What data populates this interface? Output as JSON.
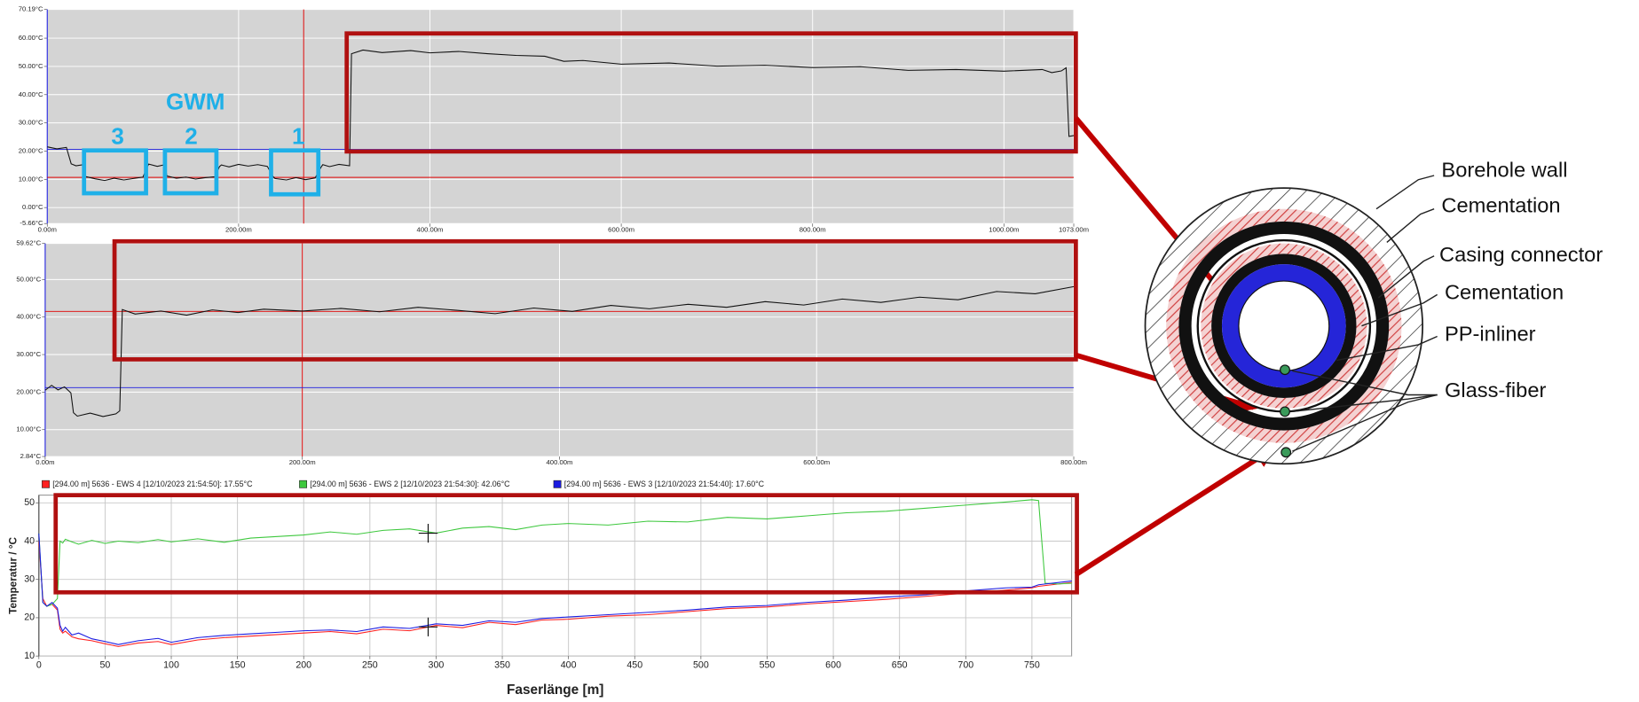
{
  "chart_data": [
    {
      "type": "line",
      "plot_background": "#d4d4d4",
      "grid": true,
      "grid_color": "#ffffff",
      "xlim": [
        0,
        1073
      ],
      "ylim": [
        -5.66,
        70.19
      ],
      "xticks": [
        {
          "value": 0,
          "label": "0.00m"
        },
        {
          "value": 200,
          "label": "200.00m"
        },
        {
          "value": 400,
          "label": "400.00m"
        },
        {
          "value": 600,
          "label": "600.00m"
        },
        {
          "value": 800,
          "label": "800.00m"
        },
        {
          "value": 1000,
          "label": "1000.00m"
        },
        {
          "value": 1073,
          "label": "1073.00m"
        }
      ],
      "yticks": [
        {
          "value": -5.66,
          "label": "-5.66°C"
        },
        {
          "value": 0,
          "label": "0.00°C"
        },
        {
          "value": 10,
          "label": "10.00°C"
        },
        {
          "value": 20,
          "label": "20.00°C"
        },
        {
          "value": 30,
          "label": "30.00°C"
        },
        {
          "value": 40,
          "label": "40.00°C"
        },
        {
          "value": 50,
          "label": "50.00°C"
        },
        {
          "value": 60,
          "label": "60.00°C"
        },
        {
          "value": 70.19,
          "label": "70.19°C"
        }
      ],
      "ref_lines": [
        {
          "axis": "x",
          "value": 268,
          "color": "#e00000"
        },
        {
          "axis": "y",
          "value": 10.7,
          "color": "#e00000"
        },
        {
          "axis": "y",
          "value": 20.6,
          "color": "#2020e0"
        }
      ],
      "annotations": [
        "GWM",
        "3",
        "2",
        "1"
      ],
      "x": [
        0,
        10,
        20,
        25,
        30,
        38,
        40,
        50,
        60,
        70,
        80,
        90,
        100,
        104,
        106,
        115,
        123,
        125,
        135,
        145,
        155,
        165,
        175,
        180,
        182,
        190,
        200,
        210,
        220,
        230,
        236,
        238,
        250,
        260,
        270,
        280,
        286,
        288,
        295,
        305,
        316,
        318,
        330,
        350,
        380,
        400,
        430,
        460,
        490,
        520,
        540,
        560,
        600,
        650,
        700,
        750,
        800,
        850,
        900,
        950,
        1000,
        1040,
        1050,
        1060,
        1065,
        1068,
        1073
      ],
      "series": [
        {
          "color": "#111111",
          "values": [
            21.5,
            20.8,
            21.3,
            15.5,
            14.8,
            15.2,
            11,
            10.2,
            9.6,
            10.4,
            9.8,
            10.3,
            10.8,
            14,
            15.4,
            14.6,
            15.2,
            11.2,
            10.4,
            10.8,
            10.1,
            10.6,
            10.9,
            14.5,
            15.1,
            14.4,
            15.3,
            14.7,
            15.2,
            14.6,
            11,
            10.3,
            9.8,
            10.6,
            9.9,
            10.5,
            14.2,
            15.2,
            14.5,
            15.3,
            14.8,
            54.5,
            55.8,
            54.9,
            55.6,
            54.8,
            55.3,
            54.5,
            53.9,
            53.6,
            51.8,
            52.1,
            50.8,
            51.2,
            50.1,
            50.4,
            49.6,
            49.9,
            48.6,
            48.9,
            48.3,
            48.9,
            47.8,
            48.4,
            49.5,
            25.2,
            25.5
          ]
        }
      ]
    },
    {
      "type": "line",
      "plot_background": "#d4d4d4",
      "grid": true,
      "grid_color": "#ffffff",
      "xlim": [
        0,
        800
      ],
      "ylim": [
        2.84,
        59.62
      ],
      "xticks": [
        {
          "value": 0,
          "label": "0.00m"
        },
        {
          "value": 200,
          "label": "200.00m"
        },
        {
          "value": 400,
          "label": "400.00m"
        },
        {
          "value": 600,
          "label": "600.00m"
        },
        {
          "value": 800,
          "label": "800.00m"
        }
      ],
      "yticks": [
        {
          "value": 2.84,
          "label": "2.84°C"
        },
        {
          "value": 10,
          "label": "10.00°C"
        },
        {
          "value": 20,
          "label": "20.00°C"
        },
        {
          "value": 30,
          "label": "30.00°C"
        },
        {
          "value": 40,
          "label": "40.00°C"
        },
        {
          "value": 50,
          "label": "50.00°C"
        },
        {
          "value": 59.62,
          "label": "59.62°C"
        }
      ],
      "ref_lines": [
        {
          "axis": "x",
          "value": 200,
          "color": "#e00000"
        },
        {
          "axis": "y",
          "value": 41.5,
          "color": "#e00000"
        },
        {
          "axis": "y",
          "value": 21.2,
          "color": "#2020e0"
        }
      ],
      "x": [
        0,
        5,
        10,
        15,
        20,
        22,
        25,
        35,
        45,
        55,
        58,
        60,
        70,
        90,
        110,
        130,
        150,
        170,
        200,
        230,
        260,
        290,
        320,
        350,
        380,
        410,
        440,
        470,
        500,
        530,
        560,
        590,
        620,
        650,
        680,
        710,
        740,
        770,
        800
      ],
      "series": [
        {
          "color": "#111111",
          "values": [
            20.5,
            21.8,
            20.6,
            21.4,
            19.8,
            14.5,
            13.6,
            14.4,
            13.5,
            14.2,
            15,
            42,
            40.8,
            41.6,
            40.5,
            41.9,
            41.2,
            42.1,
            41.6,
            42.3,
            41.4,
            42.6,
            41.8,
            40.9,
            42.4,
            41.5,
            43.1,
            42.2,
            43.4,
            42.6,
            44.1,
            43.2,
            44.8,
            43.9,
            45.3,
            44.6,
            46.8,
            46.2,
            48.1
          ]
        }
      ]
    },
    {
      "type": "line",
      "plot_background": "#ffffff",
      "grid": true,
      "grid_color": "#c8c8c8",
      "legend": "top",
      "x_label": "Faserlänge [m]",
      "y_label": "Temperatur / °C",
      "xlim": [
        0,
        780
      ],
      "ylim": [
        10,
        52
      ],
      "xticks": [
        0,
        50,
        100,
        150,
        200,
        250,
        300,
        350,
        400,
        450,
        500,
        550,
        600,
        650,
        700,
        750
      ],
      "yticks": [
        10,
        20,
        30,
        40,
        50
      ],
      "markers": [
        {
          "x": 294,
          "y": 42.06
        },
        {
          "x": 294,
          "y": 17.6
        }
      ],
      "x": [
        0,
        3,
        6,
        10,
        14,
        16,
        18,
        20,
        25,
        30,
        40,
        50,
        60,
        75,
        90,
        100,
        120,
        140,
        160,
        180,
        200,
        220,
        240,
        260,
        280,
        300,
        320,
        340,
        360,
        380,
        400,
        430,
        460,
        490,
        520,
        550,
        580,
        610,
        640,
        670,
        700,
        730,
        750,
        755,
        760,
        770,
        780
      ],
      "series": [
        {
          "name": "[294.00 m] 5636 - EWS 4 [12/10/2023 21:54:50]: 17.55°C",
          "color": "#ff2020",
          "values": [
            40,
            25,
            23,
            23.5,
            22,
            17,
            16,
            16.5,
            15,
            14.5,
            14,
            13.2,
            12.5,
            13.4,
            13.8,
            13,
            14.2,
            14.8,
            15.2,
            15.6,
            16,
            16.4,
            15.8,
            17,
            16.6,
            18,
            17.4,
            18.8,
            18.2,
            19.4,
            19.6,
            20.4,
            20.8,
            21.6,
            22.4,
            22.8,
            23.6,
            24.2,
            24.8,
            25.6,
            26.4,
            27.2,
            27.8,
            28.2,
            28.4,
            28.8,
            29.2
          ]
        },
        {
          "name": "[294.00 m] 5636 - EWS 2 [12/10/2023 21:54:30]: 42.06°C",
          "color": "#3ec83e",
          "values": [
            42,
            24,
            23,
            23.5,
            25,
            40,
            39.5,
            40.5,
            39.8,
            39.2,
            40.2,
            39.4,
            40,
            39.6,
            40.4,
            39.8,
            40.6,
            39.7,
            40.8,
            41.2,
            41.6,
            42.4,
            41.8,
            42.8,
            43.2,
            42.1,
            43.4,
            43.8,
            43,
            44.2,
            44.6,
            44.2,
            45.2,
            45,
            46.2,
            45.8,
            46.6,
            47.4,
            47.8,
            48.6,
            49.4,
            50.2,
            50.8,
            50.6,
            29,
            28.8,
            29
          ]
        },
        {
          "name": "[294.00 m] 5636 - EWS 3 [12/10/2023 21:54:40]: 17.60°C",
          "color": "#1a1ae0",
          "values": [
            42,
            24,
            23,
            24,
            22.5,
            18,
            16.5,
            17.5,
            15.5,
            16,
            14.5,
            13.8,
            13,
            14,
            14.6,
            13.6,
            14.8,
            15.4,
            15.8,
            16.2,
            16.6,
            16.8,
            16.4,
            17.6,
            17.2,
            18.4,
            18,
            19.2,
            18.8,
            19.8,
            20.2,
            20.8,
            21.4,
            22,
            22.8,
            23.2,
            24,
            24.6,
            25.4,
            26,
            27,
            27.8,
            28,
            28.6,
            28.8,
            29.2,
            29.6
          ]
        }
      ]
    }
  ],
  "diagram": {
    "labels": [
      "Borehole wall",
      "Cementation",
      "Casing connector",
      "Cementation",
      "PP-inliner",
      "Glass-fiber"
    ]
  }
}
